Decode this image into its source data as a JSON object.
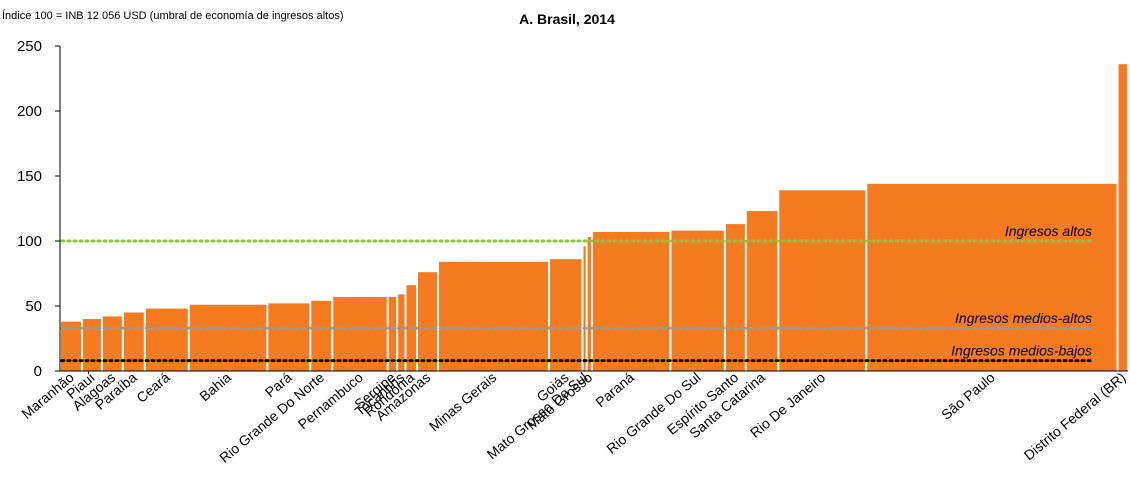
{
  "chart_data": {
    "type": "bar",
    "title": "A. Brasil, 2014",
    "subtitle": "Índice 100 = INB 12 056 USD (umbral de economía de ingresos altos)",
    "categories": [
      "Maranhão",
      "Piauí",
      "Alagoas",
      "Paraíba",
      "Ceará",
      "Bahia",
      "Pará",
      "Rio Grande Do Norte",
      "Pernambuco",
      "Sergipe",
      "Tocantins",
      "Rondônia",
      "Amazonas",
      "Minas Gerais",
      "Goiás",
      "Mato Grosso Do Sul",
      "Mato Grosso",
      "Paraná",
      "Rio Grande Do Sul",
      "Espírito Santo",
      "Santa Catarina",
      "Rio De Janeiro",
      "São Paulo",
      "Distrito Federal (BR)"
    ],
    "values": [
      38,
      40,
      42,
      45,
      48,
      51,
      52,
      54,
      57,
      57,
      59,
      66,
      76,
      84,
      86,
      96,
      103,
      107,
      108,
      113,
      123,
      139,
      144,
      236
    ],
    "widths": [
      21,
      19,
      20,
      21,
      42,
      75,
      41,
      21,
      53,
      9,
      8,
      11,
      20,
      106,
      32,
      4,
      5,
      75,
      52,
      20,
      31,
      84,
      240,
      10
    ],
    "color": "#f47b20",
    "ylim": [
      0,
      250
    ],
    "yticks": [
      0,
      50,
      100,
      150,
      200,
      250
    ],
    "reference_lines": [
      {
        "label": "Ingresos altos",
        "value": 100,
        "color": "#8cc63f"
      },
      {
        "label": "Ingresos medios-altos",
        "value": 33,
        "color": "#999999"
      },
      {
        "label": "Ingresos medios-bajos",
        "value": 8,
        "color": "#000000"
      }
    ]
  }
}
